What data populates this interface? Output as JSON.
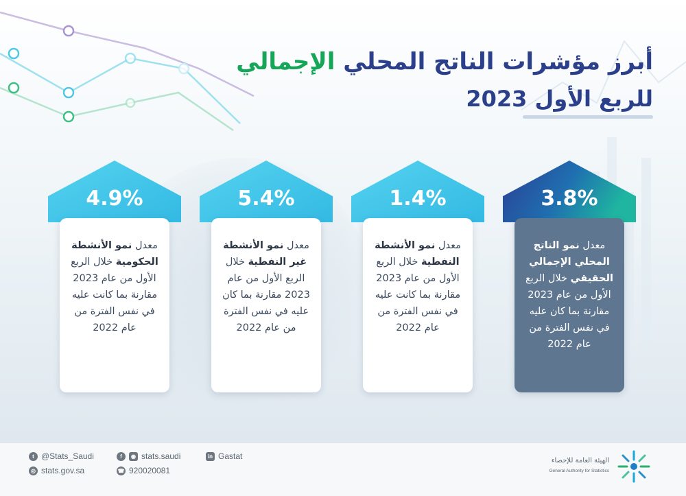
{
  "header": {
    "title_part1": "أبرز مؤشرات الناتج المحلي",
    "title_part2": "الإجمالي",
    "subtitle": "للربع الأول 2023"
  },
  "colors": {
    "navy": "#2c3f8a",
    "green": "#16a65a",
    "cyan": "#4ec9e8",
    "dark_card": "#5f7690"
  },
  "cards": [
    {
      "value": "3.8%",
      "lead": "معدل",
      "bold": "نمو الناتج المحلي الإجمالي الحقيقي",
      "rest": "خلال الربع الأول من عام 2023 مقارنة بما كان عليه في نفس الفترة من عام 2022"
    },
    {
      "value": "1.4%",
      "lead": "معدل",
      "bold": "نمو الأنشطة النفطية",
      "rest": "خلال الربع الأول من عام 2023 مقارنة بما كانت عليه في نفس الفترة من عام 2022"
    },
    {
      "value": "5.4%",
      "lead": "معدل",
      "bold": "نمو الأنشطة غير النفطية",
      "rest": "خلال الربع الأول من عام 2023 مقارنة بما كان عليه في نفس الفترة من عام 2022"
    },
    {
      "value": "4.9%",
      "lead": "معدل",
      "bold": "نمو الأنشطة الحكومية",
      "rest": "خلال الربع الأول من عام 2023 مقارنة بما كانت عليه في نفس الفترة من عام 2022"
    }
  ],
  "footer": {
    "twitter": "@Stats_Saudi",
    "social": "stats.saudi",
    "linkedin": "Gastat",
    "website": "stats.gov.sa",
    "phone": "920020081",
    "twitter_icon": "twitter-icon",
    "social_icon": "facebook-instagram-icon",
    "linkedin_icon": "linkedin-icon",
    "website_icon": "globe-icon",
    "phone_icon": "phone-icon",
    "org_ar": "الهيئة العامة للإحصاء",
    "org_en": "General Authority for Statistics"
  }
}
